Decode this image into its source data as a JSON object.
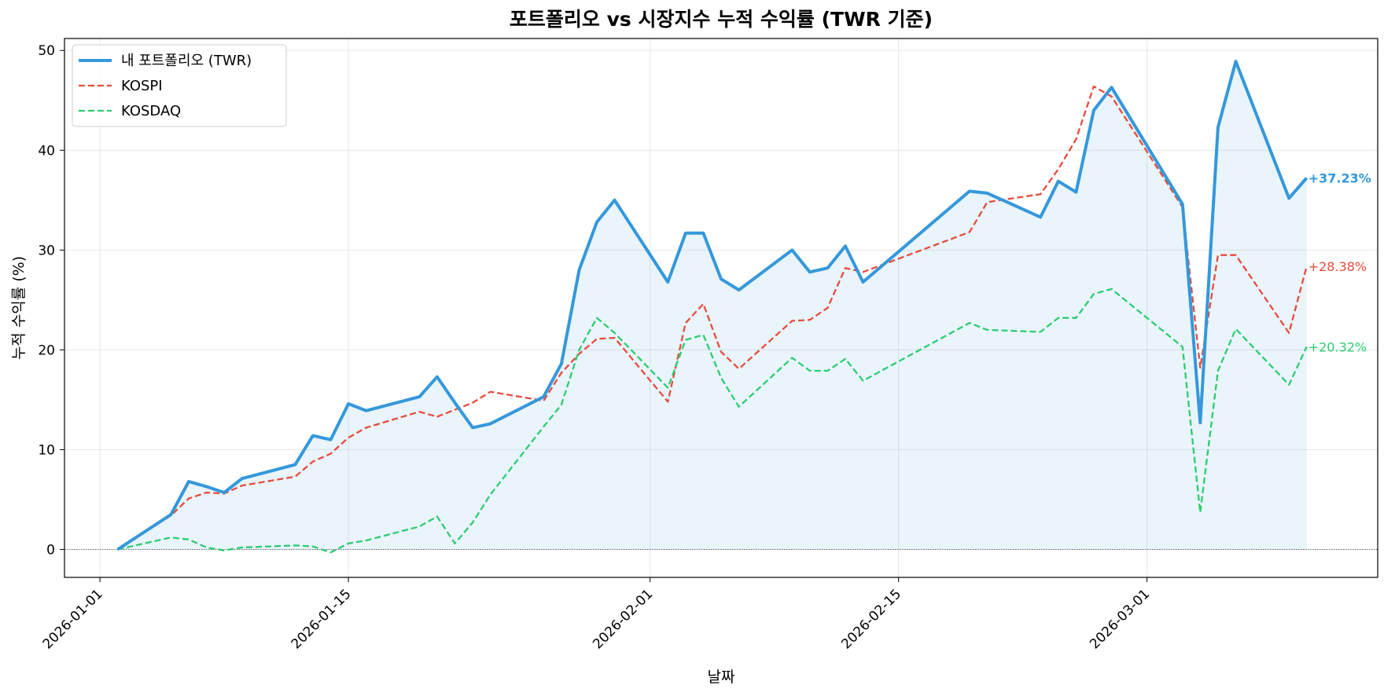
{
  "chart_data": {
    "type": "line",
    "title": "포트폴리오 vs 시장지수 누적 수익률 (TWR 기준)",
    "xlabel": "날짜",
    "ylabel": "누적 수익률 (%)",
    "xlim": [
      "2025-12-30",
      "2026-03-14"
    ],
    "ylim": [
      -2.8,
      51.2
    ],
    "x_ticks": [
      "2026-01-01",
      "2026-01-15",
      "2026-02-01",
      "2026-02-15",
      "2026-03-01"
    ],
    "y_ticks": [
      0,
      10,
      20,
      30,
      40,
      50
    ],
    "grid": true,
    "legend_position": "upper-left",
    "series": [
      {
        "name": "내 포트폴리오 (TWR)",
        "color": "#3498db",
        "style": "solid",
        "fill_to_zero": true,
        "end_label": "+37.23%",
        "points": [
          [
            "2026-01-02",
            0
          ],
          [
            "2026-01-05",
            3.5
          ],
          [
            "2026-01-06",
            6.8
          ],
          [
            "2026-01-07",
            6.3
          ],
          [
            "2026-01-08",
            5.7
          ],
          [
            "2026-01-09",
            7.1
          ],
          [
            "2026-01-12",
            8.5
          ],
          [
            "2026-01-13",
            11.4
          ],
          [
            "2026-01-14",
            11.0
          ],
          [
            "2026-01-15",
            14.6
          ],
          [
            "2026-01-16",
            13.9
          ],
          [
            "2026-01-19",
            15.3
          ],
          [
            "2026-01-20",
            17.3
          ],
          [
            "2026-01-21",
            14.7
          ],
          [
            "2026-01-22",
            12.2
          ],
          [
            "2026-01-23",
            12.6
          ],
          [
            "2026-01-26",
            15.3
          ],
          [
            "2026-01-27",
            18.6
          ],
          [
            "2026-01-28",
            28.0
          ],
          [
            "2026-01-29",
            32.8
          ],
          [
            "2026-01-30",
            35.0
          ],
          [
            "2026-02-02",
            26.8
          ],
          [
            "2026-02-03",
            31.7
          ],
          [
            "2026-02-04",
            31.7
          ],
          [
            "2026-02-05",
            27.1
          ],
          [
            "2026-02-06",
            26.0
          ],
          [
            "2026-02-09",
            30.0
          ],
          [
            "2026-02-10",
            27.8
          ],
          [
            "2026-02-11",
            28.2
          ],
          [
            "2026-02-12",
            30.4
          ],
          [
            "2026-02-13",
            26.8
          ],
          [
            "2026-02-19",
            35.9
          ],
          [
            "2026-02-20",
            35.7
          ],
          [
            "2026-02-23",
            33.3
          ],
          [
            "2026-02-24",
            36.9
          ],
          [
            "2026-02-25",
            35.8
          ],
          [
            "2026-02-26",
            44.0
          ],
          [
            "2026-02-27",
            46.3
          ],
          [
            "2026-03-03",
            34.6
          ],
          [
            "2026-03-04",
            12.7
          ],
          [
            "2026-03-05",
            42.3
          ],
          [
            "2026-03-06",
            48.9
          ],
          [
            "2026-03-09",
            35.2
          ],
          [
            "2026-03-10",
            37.23
          ]
        ]
      },
      {
        "name": "KOSPI",
        "color": "#e74c3c",
        "style": "dashed",
        "fill_to_zero": false,
        "end_label": "+28.38%",
        "points": [
          [
            "2026-01-02",
            0
          ],
          [
            "2026-01-05",
            3.4
          ],
          [
            "2026-01-06",
            5.1
          ],
          [
            "2026-01-07",
            5.7
          ],
          [
            "2026-01-08",
            5.6
          ],
          [
            "2026-01-09",
            6.4
          ],
          [
            "2026-01-12",
            7.3
          ],
          [
            "2026-01-13",
            8.8
          ],
          [
            "2026-01-14",
            9.6
          ],
          [
            "2026-01-15",
            11.2
          ],
          [
            "2026-01-16",
            12.2
          ],
          [
            "2026-01-19",
            13.8
          ],
          [
            "2026-01-20",
            13.3
          ],
          [
            "2026-01-21",
            14.0
          ],
          [
            "2026-01-22",
            14.7
          ],
          [
            "2026-01-23",
            15.8
          ],
          [
            "2026-01-26",
            14.9
          ],
          [
            "2026-01-27",
            17.7
          ],
          [
            "2026-01-28",
            19.6
          ],
          [
            "2026-01-29",
            21.1
          ],
          [
            "2026-01-30",
            21.2
          ],
          [
            "2026-02-02",
            14.8
          ],
          [
            "2026-02-03",
            22.7
          ],
          [
            "2026-02-04",
            24.6
          ],
          [
            "2026-02-05",
            19.8
          ],
          [
            "2026-02-06",
            18.1
          ],
          [
            "2026-02-09",
            22.9
          ],
          [
            "2026-02-10",
            23.0
          ],
          [
            "2026-02-11",
            24.2
          ],
          [
            "2026-02-12",
            28.2
          ],
          [
            "2026-02-13",
            27.8
          ],
          [
            "2026-02-19",
            31.8
          ],
          [
            "2026-02-20",
            34.8
          ],
          [
            "2026-02-23",
            35.6
          ],
          [
            "2026-02-24",
            38.1
          ],
          [
            "2026-02-25",
            41.1
          ],
          [
            "2026-02-26",
            46.4
          ],
          [
            "2026-02-27",
            45.4
          ],
          [
            "2026-03-03",
            34.3
          ],
          [
            "2026-03-04",
            18.2
          ],
          [
            "2026-03-05",
            29.5
          ],
          [
            "2026-03-06",
            29.5
          ],
          [
            "2026-03-09",
            21.7
          ],
          [
            "2026-03-10",
            28.38
          ]
        ]
      },
      {
        "name": "KOSDAQ",
        "color": "#2ecc71",
        "style": "dashed",
        "fill_to_zero": false,
        "end_label": "+20.32%",
        "points": [
          [
            "2026-01-02",
            0
          ],
          [
            "2026-01-05",
            1.2
          ],
          [
            "2026-01-06",
            1.0
          ],
          [
            "2026-01-07",
            0.2
          ],
          [
            "2026-01-08",
            -0.1
          ],
          [
            "2026-01-09",
            0.2
          ],
          [
            "2026-01-12",
            0.4
          ],
          [
            "2026-01-13",
            0.3
          ],
          [
            "2026-01-14",
            -0.3
          ],
          [
            "2026-01-15",
            0.6
          ],
          [
            "2026-01-16",
            0.9
          ],
          [
            "2026-01-19",
            2.3
          ],
          [
            "2026-01-20",
            3.3
          ],
          [
            "2026-01-21",
            0.6
          ],
          [
            "2026-01-22",
            2.7
          ],
          [
            "2026-01-23",
            5.5
          ],
          [
            "2026-01-26",
            12.3
          ],
          [
            "2026-01-27",
            14.5
          ],
          [
            "2026-01-28",
            20.0
          ],
          [
            "2026-01-29",
            23.2
          ],
          [
            "2026-01-30",
            21.7
          ],
          [
            "2026-02-02",
            16.2
          ],
          [
            "2026-02-03",
            21.0
          ],
          [
            "2026-02-04",
            21.5
          ],
          [
            "2026-02-05",
            17.2
          ],
          [
            "2026-02-06",
            14.3
          ],
          [
            "2026-02-09",
            19.2
          ],
          [
            "2026-02-10",
            17.9
          ],
          [
            "2026-02-11",
            17.9
          ],
          [
            "2026-02-12",
            19.1
          ],
          [
            "2026-02-13",
            16.9
          ],
          [
            "2026-02-19",
            22.7
          ],
          [
            "2026-02-20",
            22.0
          ],
          [
            "2026-02-23",
            21.8
          ],
          [
            "2026-02-24",
            23.2
          ],
          [
            "2026-02-25",
            23.2
          ],
          [
            "2026-02-26",
            25.6
          ],
          [
            "2026-02-27",
            26.1
          ],
          [
            "2026-03-03",
            20.3
          ],
          [
            "2026-03-04",
            3.7
          ],
          [
            "2026-03-05",
            17.9
          ],
          [
            "2026-03-06",
            22.1
          ],
          [
            "2026-03-09",
            16.5
          ],
          [
            "2026-03-10",
            20.32
          ]
        ]
      }
    ]
  }
}
